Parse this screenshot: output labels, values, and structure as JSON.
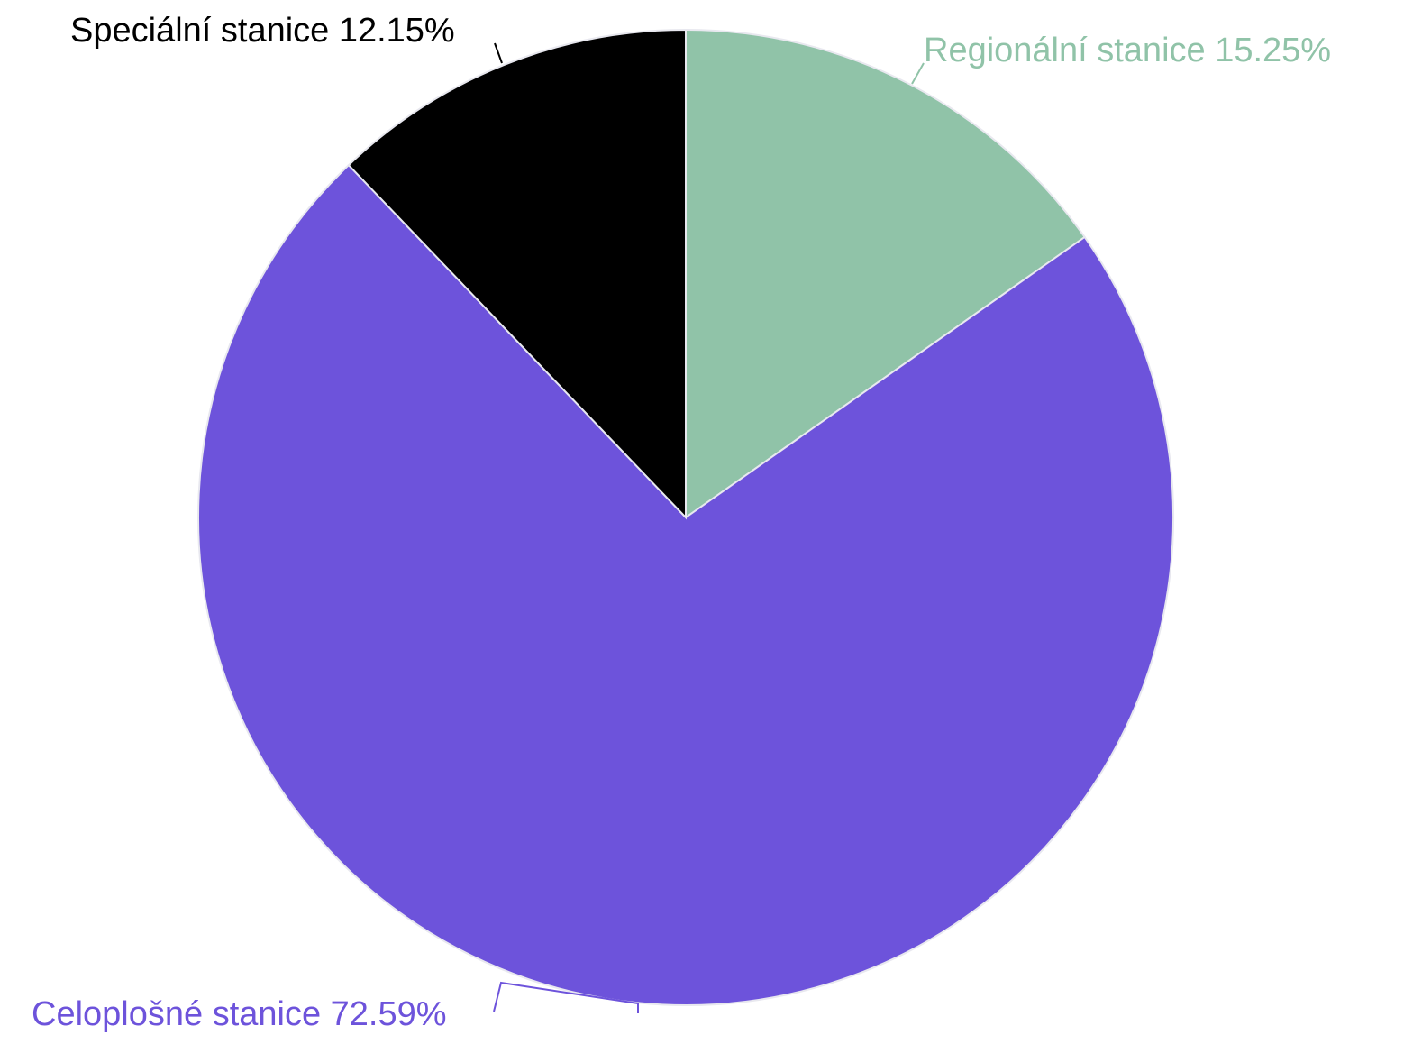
{
  "chart_data": {
    "type": "pie",
    "title": "",
    "slices": [
      {
        "label": "Regionální stanice",
        "value": 15.25,
        "value_label": "15.25%",
        "color": "#90c3a8"
      },
      {
        "label": "Celoplošné stanice",
        "value": 72.59,
        "value_label": "72.59%",
        "color": "#6d53db"
      },
      {
        "label": "Speciální stanice",
        "value": 12.15,
        "value_label": "12.15%",
        "color": "#000000"
      }
    ],
    "start_angle": "12 o'clock",
    "direction": "clockwise",
    "label_colors": [
      "#90c3a8",
      "#6d53db",
      "#000000"
    ]
  }
}
